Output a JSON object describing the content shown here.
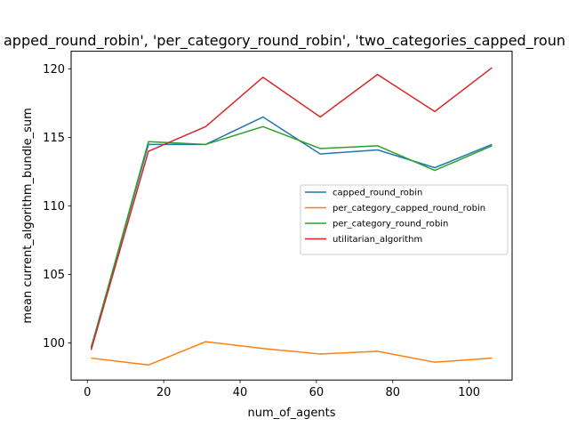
{
  "chart_data": {
    "type": "line",
    "title": "apped_round_robin', 'per_category_round_robin', 'two_categories_capped_roun",
    "xlabel": "num_of_agents",
    "ylabel": "mean current_algorithm_bundle_sum",
    "x": [
      1,
      16,
      31,
      46,
      61,
      76,
      91,
      106
    ],
    "xlim": [
      -4.25,
      111.25
    ],
    "ylim": [
      97.3,
      121.3
    ],
    "xticks": [
      0,
      20,
      40,
      60,
      80,
      100
    ],
    "yticks": [
      100,
      105,
      110,
      115,
      120
    ],
    "grid": false,
    "legend_position": "center-right",
    "series": [
      {
        "name": "capped_round_robin",
        "color": "#1f77b4",
        "values": [
          99.7,
          114.5,
          114.5,
          116.5,
          113.8,
          114.1,
          112.8,
          114.5
        ]
      },
      {
        "name": "per_category_capped_round_robin",
        "color": "#ff7f0e",
        "values": [
          98.9,
          98.4,
          100.1,
          99.6,
          99.2,
          99.4,
          98.6,
          98.9
        ]
      },
      {
        "name": "per_category_round_robin",
        "color": "#2ca02c",
        "values": [
          99.6,
          114.7,
          114.5,
          115.8,
          114.2,
          114.4,
          112.6,
          114.4
        ]
      },
      {
        "name": "utilitarian_algorithm",
        "color": "#d62728",
        "values": [
          99.5,
          114.0,
          115.8,
          119.4,
          116.5,
          119.6,
          116.9,
          120.1
        ]
      }
    ]
  }
}
